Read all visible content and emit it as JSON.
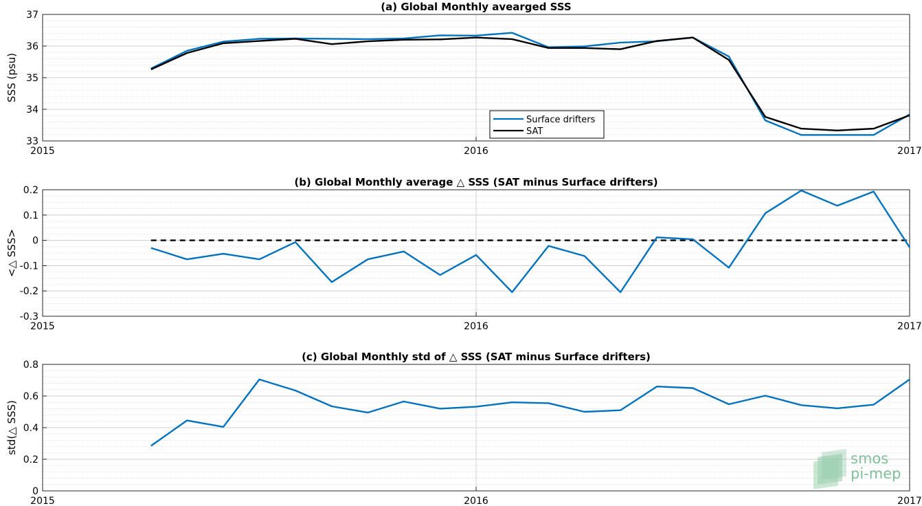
{
  "chart_data": [
    {
      "type": "line",
      "title": "(a) Global Monthly avearged SSS",
      "xlabel": "",
      "ylabel": "SSS (psu)",
      "xlim": [
        "2015",
        "2017"
      ],
      "xticks": [
        "2015",
        "2016",
        "2017"
      ],
      "ylim": [
        33,
        37
      ],
      "yticks": [
        "33",
        "34",
        "35",
        "36",
        "37"
      ],
      "grid": true,
      "legend_position": "bottom-center",
      "x": [
        2015.25,
        2015.333,
        2015.417,
        2015.5,
        2015.583,
        2015.667,
        2015.75,
        2015.833,
        2015.917,
        2016.0,
        2016.083,
        2016.167,
        2016.25,
        2016.333,
        2016.417,
        2016.5,
        2016.583,
        2016.667,
        2016.75,
        2016.833,
        2016.917,
        2017.0
      ],
      "series": [
        {
          "name": "Surface drifters",
          "color": "#0072BD",
          "values": [
            35.29,
            35.85,
            36.14,
            36.23,
            36.24,
            36.23,
            36.22,
            36.24,
            36.34,
            36.33,
            36.42,
            35.96,
            35.99,
            36.11,
            36.15,
            36.27,
            35.67,
            33.65,
            33.19,
            33.19,
            33.19,
            33.84
          ]
        },
        {
          "name": "SAT",
          "color": "#000000",
          "values": [
            35.26,
            35.78,
            36.09,
            36.16,
            36.23,
            36.06,
            36.15,
            36.2,
            36.21,
            36.27,
            36.22,
            35.94,
            35.94,
            35.9,
            36.16,
            36.27,
            35.56,
            33.76,
            33.39,
            33.33,
            33.39,
            33.81
          ]
        }
      ]
    },
    {
      "type": "line",
      "title": "(b) Global Monthly average △ SSS (SAT minus Surface drifters)",
      "xlabel": "",
      "ylabel": "<△ SSS>",
      "xlim": [
        "2015",
        "2017"
      ],
      "xticks": [
        "2015",
        "2016",
        "2017"
      ],
      "ylim": [
        -0.3,
        0.2
      ],
      "yticks": [
        "-0.3",
        "-0.2",
        "-0.1",
        "0",
        "0.1",
        "0.2"
      ],
      "grid": true,
      "reference_line": 0,
      "x": [
        2015.25,
        2015.333,
        2015.417,
        2015.5,
        2015.583,
        2015.667,
        2015.75,
        2015.833,
        2015.917,
        2016.0,
        2016.083,
        2016.167,
        2016.25,
        2016.333,
        2016.417,
        2016.5,
        2016.583,
        2016.667,
        2016.75,
        2016.833,
        2016.917,
        2017.0
      ],
      "series": [
        {
          "color": "#0072BD",
          "values": [
            -0.03,
            -0.075,
            -0.053,
            -0.075,
            -0.007,
            -0.165,
            -0.075,
            -0.044,
            -0.137,
            -0.058,
            -0.205,
            -0.022,
            -0.062,
            -0.205,
            0.012,
            0.004,
            -0.108,
            0.107,
            0.197,
            0.137,
            0.193,
            -0.028
          ]
        }
      ]
    },
    {
      "type": "line",
      "title": "(c) Global Monthly std of △ SSS (SAT minus Surface drifters)",
      "xlabel": "",
      "ylabel": "std(△ SSS)",
      "xlim": [
        "2015",
        "2017"
      ],
      "xticks": [
        "2015",
        "2016",
        "2017"
      ],
      "ylim": [
        0,
        0.8
      ],
      "yticks": [
        "0",
        "0.2",
        "0.4",
        "0.6",
        "0.8"
      ],
      "grid": true,
      "x": [
        2015.25,
        2015.333,
        2015.417,
        2015.5,
        2015.583,
        2015.667,
        2015.75,
        2015.833,
        2015.917,
        2016.0,
        2016.083,
        2016.167,
        2016.25,
        2016.333,
        2016.417,
        2016.5,
        2016.583,
        2016.667,
        2016.75,
        2016.833,
        2016.917,
        2017.0
      ],
      "series": [
        {
          "color": "#0072BD",
          "values": [
            0.285,
            0.445,
            0.405,
            0.705,
            0.635,
            0.535,
            0.495,
            0.565,
            0.52,
            0.532,
            0.56,
            0.555,
            0.5,
            0.51,
            0.66,
            0.65,
            0.548,
            0.602,
            0.542,
            0.522,
            0.545,
            0.705
          ]
        }
      ]
    }
  ],
  "logo": {
    "line1": "smos",
    "line2": "pi-mep",
    "color": "#7fbf9a"
  }
}
